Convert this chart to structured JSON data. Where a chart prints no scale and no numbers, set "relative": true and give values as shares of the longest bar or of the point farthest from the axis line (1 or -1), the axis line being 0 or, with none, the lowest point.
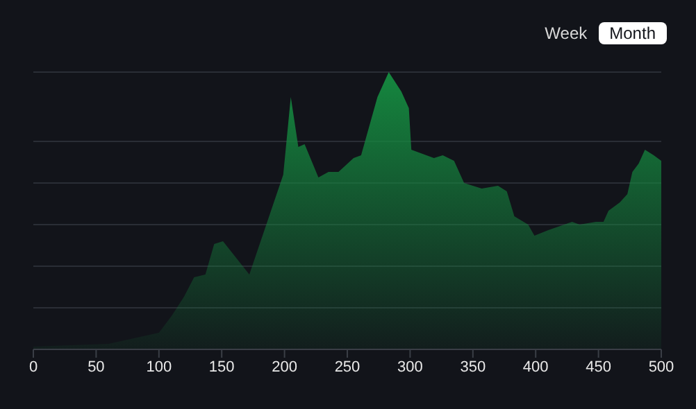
{
  "chart_data": {
    "type": "area",
    "relative": true,
    "x": [
      0,
      60,
      100,
      110,
      120,
      128,
      137,
      144,
      151,
      172,
      181,
      199,
      205,
      211,
      216,
      227,
      235,
      243,
      255,
      261,
      274,
      283,
      293,
      299,
      301,
      319,
      326,
      335,
      343,
      357,
      370,
      377,
      383,
      394,
      399,
      410,
      429,
      435,
      448,
      454,
      458,
      467,
      473,
      477,
      482,
      487,
      494,
      500
    ],
    "values": [
      0.01,
      0.02,
      0.06,
      0.12,
      0.19,
      0.26,
      0.27,
      0.38,
      0.39,
      0.27,
      0.39,
      0.63,
      0.91,
      0.73,
      0.74,
      0.62,
      0.64,
      0.64,
      0.69,
      0.7,
      0.91,
      1.0,
      0.93,
      0.87,
      0.72,
      0.69,
      0.7,
      0.68,
      0.6,
      0.58,
      0.59,
      0.57,
      0.48,
      0.45,
      0.41,
      0.43,
      0.46,
      0.45,
      0.46,
      0.46,
      0.5,
      0.53,
      0.56,
      0.64,
      0.67,
      0.72,
      0.7,
      0.68
    ],
    "color": "#15873f",
    "xlim": [
      0,
      500
    ],
    "xticks": [
      0,
      50,
      100,
      150,
      200,
      250,
      300,
      350,
      400,
      450,
      500
    ],
    "grid": "y",
    "annotations": [
      "Week",
      "Month"
    ]
  }
}
